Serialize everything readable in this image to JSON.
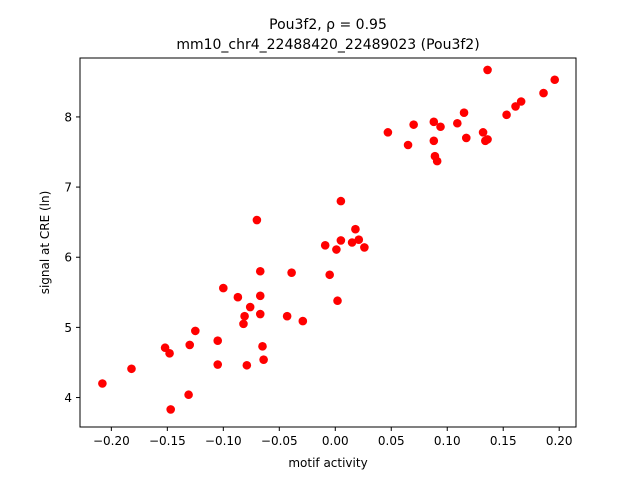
{
  "chart_data": {
    "type": "scatter",
    "title_line1": "Pou3f2, ρ = 0.95",
    "title_line2": "mm10_chr4_22488420_22489023 (Pou3f2)",
    "xlabel": "motif activity",
    "ylabel": "signal at CRE (ln)",
    "xlim": [
      -0.228,
      0.215
    ],
    "ylim": [
      3.58,
      8.84
    ],
    "grid": false,
    "point_color": "#ff0000",
    "xticks": [
      {
        "value": -0.2,
        "label": "−0.20"
      },
      {
        "value": -0.15,
        "label": "−0.15"
      },
      {
        "value": -0.1,
        "label": "−0.10"
      },
      {
        "value": -0.05,
        "label": "−0.05"
      },
      {
        "value": 0.0,
        "label": "0.00"
      },
      {
        "value": 0.05,
        "label": "0.05"
      },
      {
        "value": 0.1,
        "label": "0.10"
      },
      {
        "value": 0.15,
        "label": "0.15"
      },
      {
        "value": 0.2,
        "label": "0.20"
      }
    ],
    "yticks": [
      {
        "value": 4,
        "label": "4"
      },
      {
        "value": 5,
        "label": "5"
      },
      {
        "value": 6,
        "label": "6"
      },
      {
        "value": 7,
        "label": "7"
      },
      {
        "value": 8,
        "label": "8"
      }
    ],
    "points": [
      {
        "x": -0.208,
        "y": 4.2
      },
      {
        "x": -0.182,
        "y": 4.41
      },
      {
        "x": -0.152,
        "y": 4.71
      },
      {
        "x": -0.148,
        "y": 4.63
      },
      {
        "x": -0.147,
        "y": 3.83
      },
      {
        "x": -0.131,
        "y": 4.04
      },
      {
        "x": -0.13,
        "y": 4.75
      },
      {
        "x": -0.125,
        "y": 4.95
      },
      {
        "x": -0.105,
        "y": 4.81
      },
      {
        "x": -0.105,
        "y": 4.47
      },
      {
        "x": -0.1,
        "y": 5.56
      },
      {
        "x": -0.087,
        "y": 5.43
      },
      {
        "x": -0.082,
        "y": 5.05
      },
      {
        "x": -0.081,
        "y": 5.16
      },
      {
        "x": -0.079,
        "y": 4.46
      },
      {
        "x": -0.076,
        "y": 5.29
      },
      {
        "x": -0.07,
        "y": 6.53
      },
      {
        "x": -0.067,
        "y": 5.8
      },
      {
        "x": -0.067,
        "y": 5.45
      },
      {
        "x": -0.067,
        "y": 5.19
      },
      {
        "x": -0.065,
        "y": 4.73
      },
      {
        "x": -0.064,
        "y": 4.54
      },
      {
        "x": -0.043,
        "y": 5.16
      },
      {
        "x": -0.039,
        "y": 5.78
      },
      {
        "x": -0.029,
        "y": 5.09
      },
      {
        "x": -0.009,
        "y": 6.17
      },
      {
        "x": -0.005,
        "y": 5.75
      },
      {
        "x": 0.001,
        "y": 6.11
      },
      {
        "x": 0.002,
        "y": 5.38
      },
      {
        "x": 0.005,
        "y": 6.24
      },
      {
        "x": 0.005,
        "y": 6.8
      },
      {
        "x": 0.015,
        "y": 6.21
      },
      {
        "x": 0.018,
        "y": 6.4
      },
      {
        "x": 0.021,
        "y": 6.25
      },
      {
        "x": 0.026,
        "y": 6.14
      },
      {
        "x": 0.047,
        "y": 7.78
      },
      {
        "x": 0.065,
        "y": 7.6
      },
      {
        "x": 0.07,
        "y": 7.89
      },
      {
        "x": 0.088,
        "y": 7.93
      },
      {
        "x": 0.088,
        "y": 7.66
      },
      {
        "x": 0.089,
        "y": 7.44
      },
      {
        "x": 0.091,
        "y": 7.37
      },
      {
        "x": 0.094,
        "y": 7.86
      },
      {
        "x": 0.109,
        "y": 7.91
      },
      {
        "x": 0.115,
        "y": 8.06
      },
      {
        "x": 0.117,
        "y": 7.7
      },
      {
        "x": 0.132,
        "y": 7.78
      },
      {
        "x": 0.134,
        "y": 7.66
      },
      {
        "x": 0.136,
        "y": 7.68
      },
      {
        "x": 0.136,
        "y": 8.67
      },
      {
        "x": 0.153,
        "y": 8.03
      },
      {
        "x": 0.161,
        "y": 8.15
      },
      {
        "x": 0.166,
        "y": 8.22
      },
      {
        "x": 0.186,
        "y": 8.34
      },
      {
        "x": 0.196,
        "y": 8.53
      }
    ]
  }
}
